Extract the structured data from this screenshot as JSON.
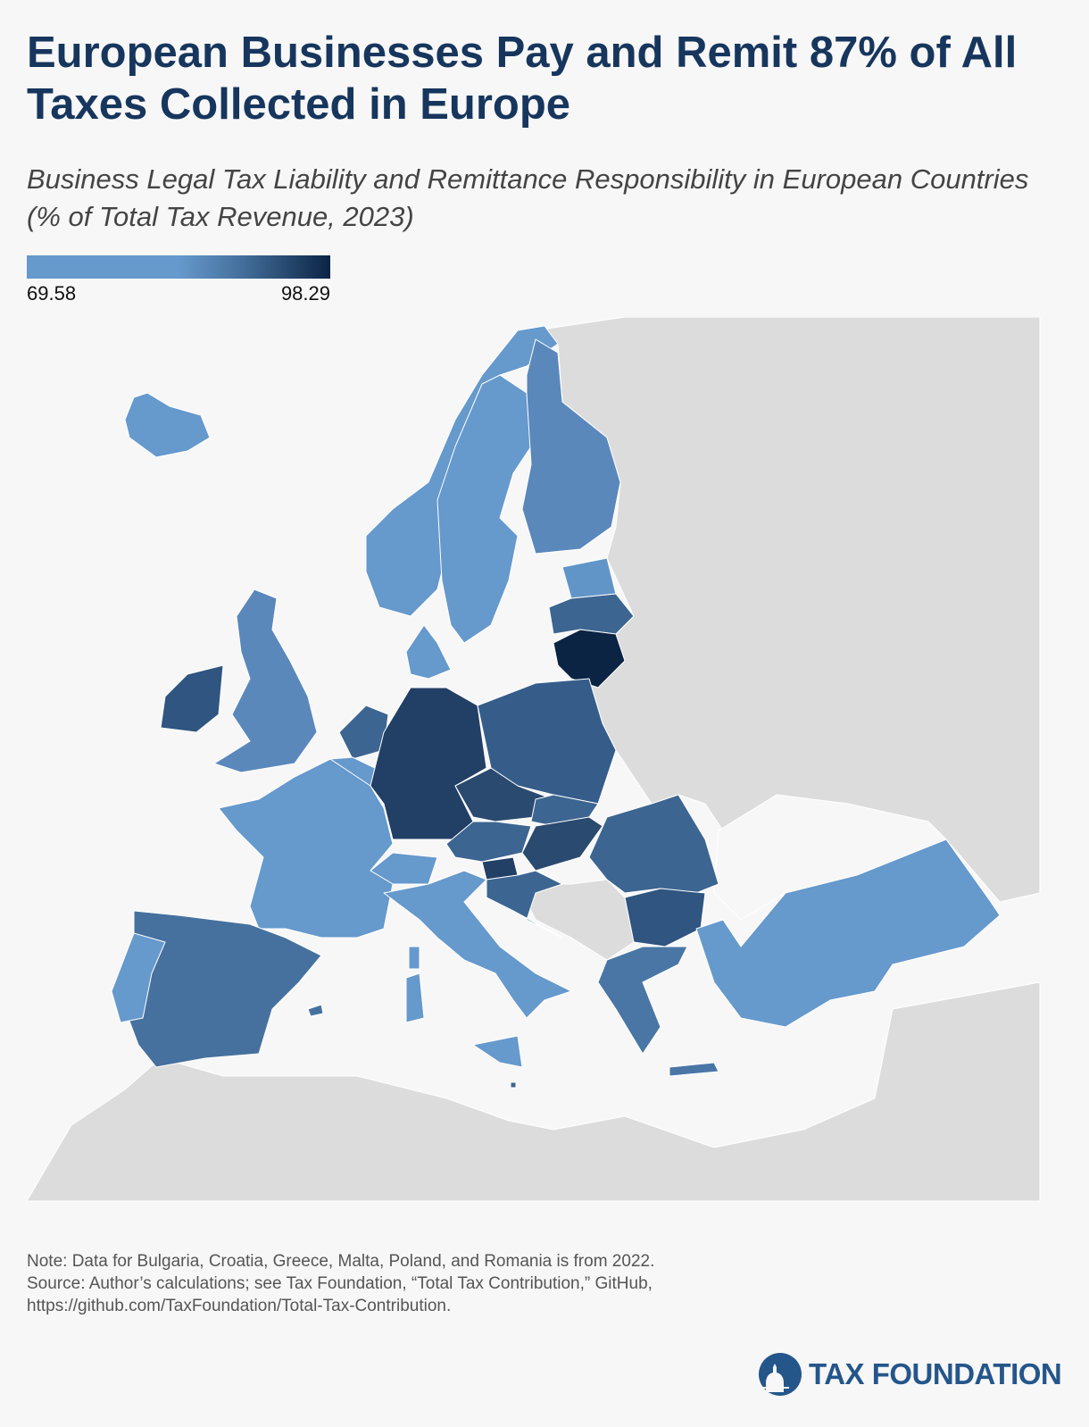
{
  "header": {
    "title": "European Businesses Pay and Remit 87% of All Taxes Collected in Europe",
    "subtitle": "Business Legal Tax Liability and Remittance Responsibility in European Countries (% of Total Tax Revenue, 2023)"
  },
  "legend": {
    "min": "69.58",
    "max": "98.29",
    "color_low": "#6699cc",
    "color_high": "#0b2444"
  },
  "map": {
    "land_no_data": "#dcdcdc",
    "sea": "#f7f7f7",
    "country_fills": {
      "iceland": "#6699cc",
      "norway": "#6699cc",
      "sweden": "#6699cc",
      "finland": "#5a88bb",
      "estonia": "#6195c8",
      "latvia": "#3d6591",
      "lithuania": "#0b2444",
      "denmark": "#6699cc",
      "united-kingdom": "#5a88bb",
      "ireland": "#2f5580",
      "netherlands": "#3d6591",
      "belgium": "#6699cc",
      "germany": "#223f66",
      "poland": "#365d8a",
      "czechia": "#2a4a70",
      "slovakia": "#3d6591",
      "austria": "#3d6591",
      "hungary": "#2a4a70",
      "slovenia": "#223f66",
      "croatia": "#3d6591",
      "switzerland": "#6699cc",
      "france": "#6699cc",
      "italy": "#6699cc",
      "spain": "#46719e",
      "portugal": "#6699cc",
      "romania": "#3d6591",
      "bulgaria": "#2f5580",
      "greece": "#4a76a6",
      "turkey": "#6699cc",
      "malta": "#3d6591"
    }
  },
  "footer": {
    "note": "Note: Data for Bulgaria, Croatia, Greece, Malta, Poland, and Romania is from 2022.",
    "source_line1": "Source: Author’s calculations; see Tax Foundation, “Total Tax Contribution,” GitHub,",
    "source_line2": "https://github.com/TaxFoundation/Total-Tax-Contribution.",
    "logo": "TAX FOUNDATION"
  }
}
